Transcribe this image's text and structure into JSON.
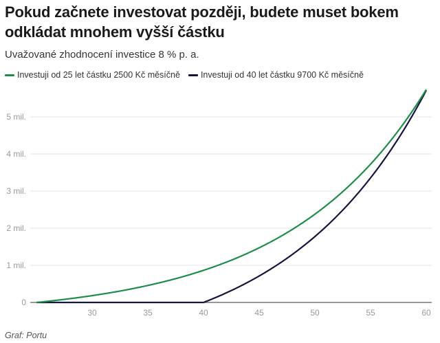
{
  "title": "Pokud začnete investovat později, budete muset bokem odkládat mnohem vyšší částku",
  "subtitle": "Uvažované zhodnocení investice 8 % p. a.",
  "legend": [
    {
      "label": "Investuji od 25 let částku 2500 Kč měsíčně",
      "color": "#1e8c4a"
    },
    {
      "label": "Investuji od 40 let částku 9700 Kč měsíčně",
      "color": "#14143c"
    }
  ],
  "source": "Graf: Portu",
  "chart_data": {
    "type": "line",
    "title": "Pokud začnete investovat později, budete muset bokem odkládat mnohem vyšší částku",
    "subtitle": "Uvažované zhodnocení investice 8 % p. a.",
    "xlabel": "",
    "ylabel": "",
    "x_ticks": [
      30,
      35,
      40,
      45,
      50,
      55,
      60
    ],
    "y_ticks": [
      0,
      1000000,
      2000000,
      3000000,
      4000000,
      5000000
    ],
    "y_tick_labels": [
      "0",
      "1 mil.",
      "2 mil.",
      "3 mil.",
      "4 mil.",
      "5 mil."
    ],
    "xlim": [
      25,
      60
    ],
    "ylim": [
      0,
      5700000
    ],
    "grid": true,
    "legend_position": "top",
    "x": [
      25,
      30,
      35,
      40,
      45,
      50,
      55,
      60
    ],
    "series": [
      {
        "name": "Investuji od 25 let částku 2500 Kč měsíčně",
        "color": "#1e8c4a",
        "start_age": 25,
        "monthly": 2500,
        "annual_rate": 0.08,
        "values": [
          0,
          184000,
          457000,
          865000,
          1473000,
          2378000,
          3726000,
          5740000
        ]
      },
      {
        "name": "Investuji od 40 let částku 9700 Kč měsíčně",
        "color": "#14143c",
        "start_age": 40,
        "monthly": 9700,
        "annual_rate": 0.08,
        "values": [
          0,
          0,
          0,
          0,
          713000,
          1773000,
          3357000,
          5710000
        ]
      }
    ]
  }
}
